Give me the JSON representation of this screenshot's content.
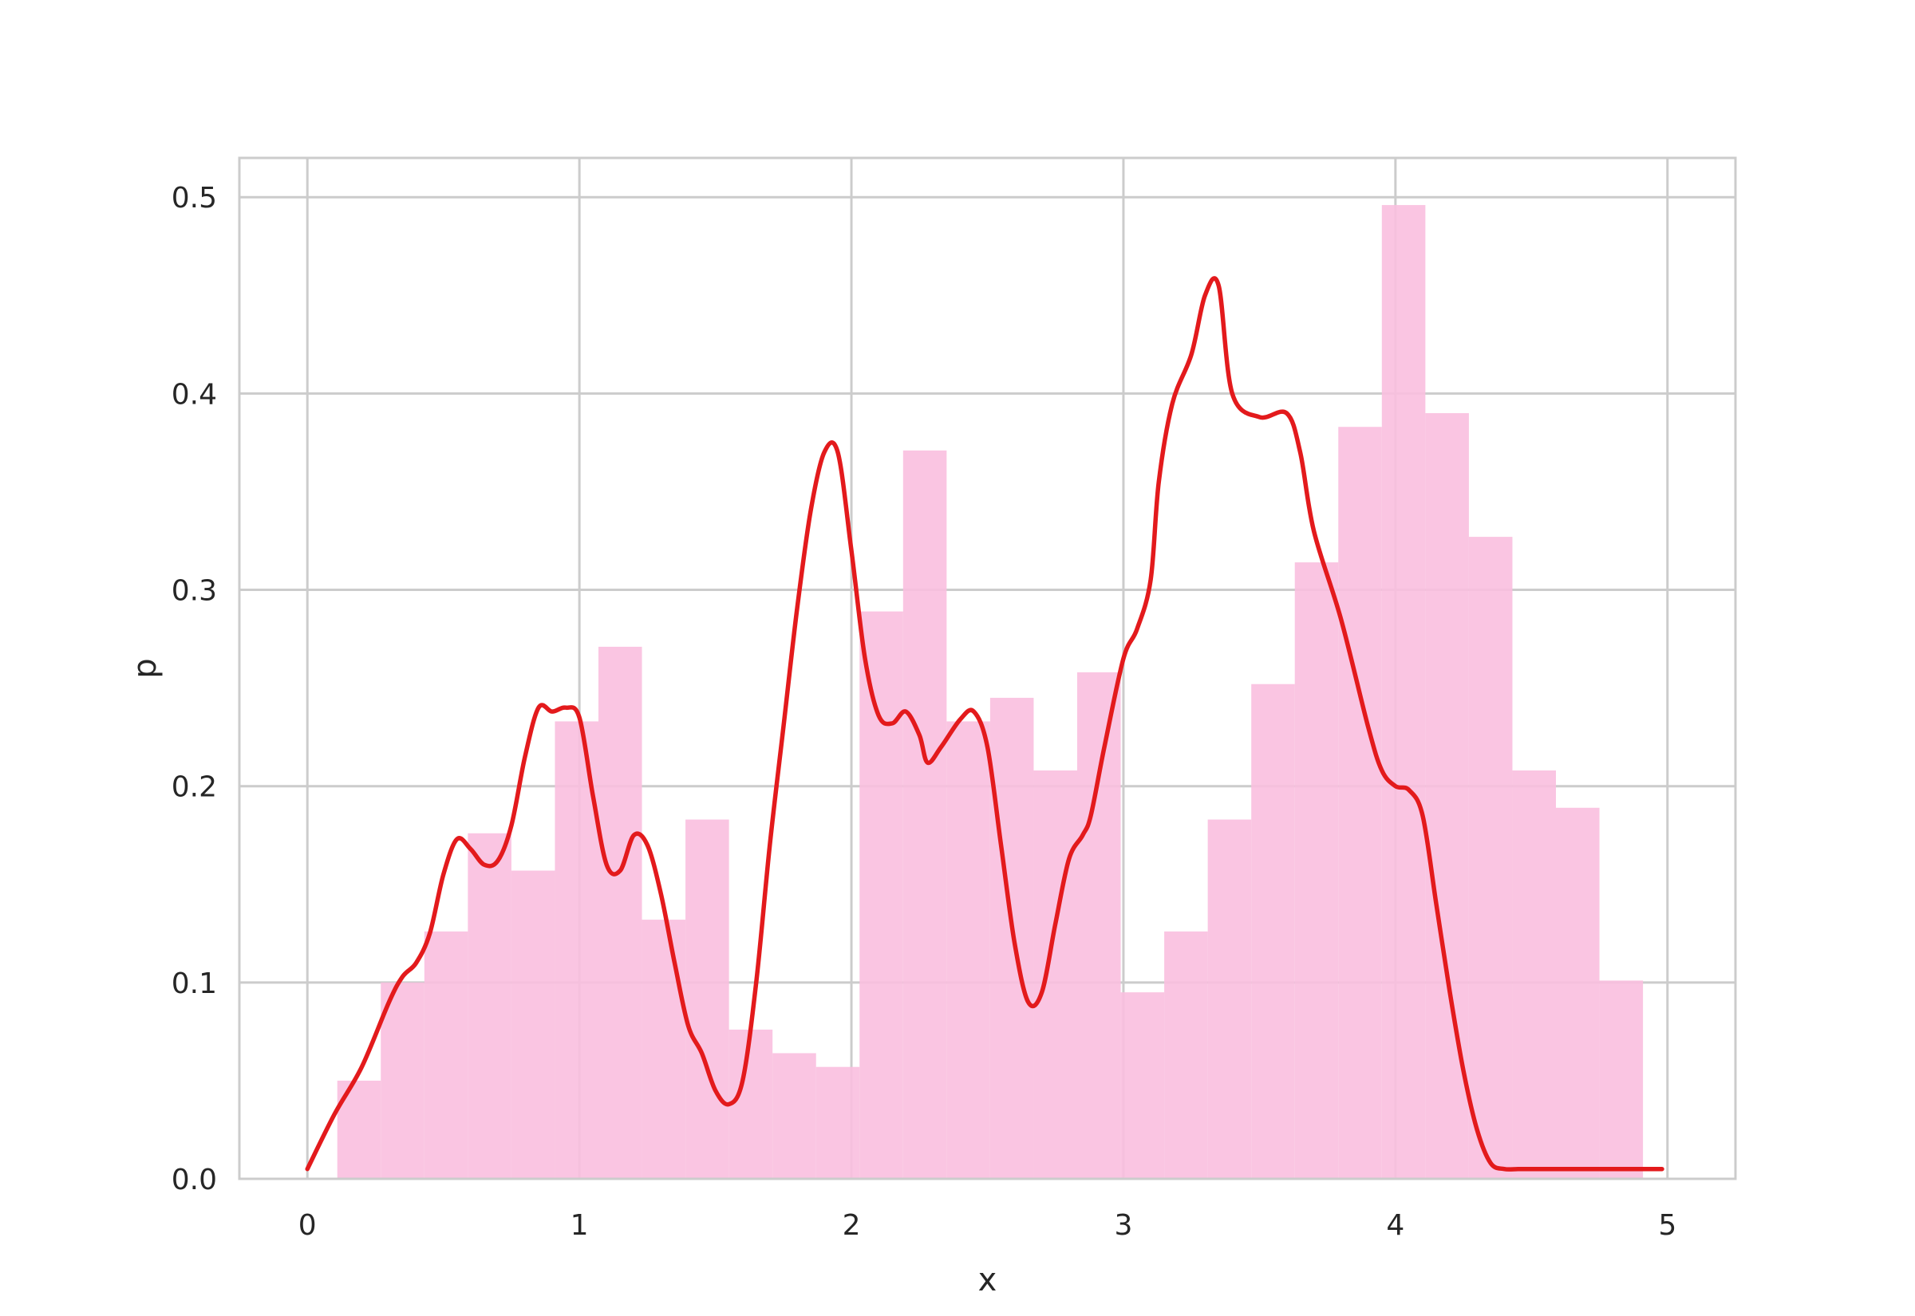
{
  "chart_data": {
    "type": "bar",
    "title": "",
    "xlabel": "x",
    "ylabel": "p",
    "xlim": [
      -0.25,
      5.25
    ],
    "ylim": [
      0.0,
      0.52
    ],
    "grid": true,
    "xticks": [
      0,
      1,
      2,
      3,
      4,
      5
    ],
    "xtick_labels": [
      "0",
      "1",
      "2",
      "3",
      "4",
      "5"
    ],
    "yticks": [
      0.0,
      0.1,
      0.2,
      0.3,
      0.4,
      0.5
    ],
    "ytick_labels": [
      "0.0",
      "0.1",
      "0.2",
      "0.3",
      "0.4",
      "0.5"
    ],
    "histogram": {
      "bin_width": 0.16,
      "bin_starts": [
        0.11,
        0.27,
        0.43,
        0.59,
        0.75,
        0.91,
        1.07,
        1.23,
        1.39,
        1.55,
        1.71,
        1.87,
        2.03,
        2.19,
        2.35,
        2.51,
        2.67,
        2.83,
        2.99,
        3.15,
        3.31,
        3.47,
        3.63,
        3.79,
        3.95,
        4.11,
        4.27,
        4.43,
        4.59,
        4.75
      ],
      "values": [
        0.05,
        0.1,
        0.126,
        0.176,
        0.157,
        0.233,
        0.271,
        0.132,
        0.183,
        0.076,
        0.064,
        0.057,
        0.289,
        0.371,
        0.233,
        0.245,
        0.208,
        0.258,
        0.095,
        0.126,
        0.183,
        0.252,
        0.314,
        0.383,
        0.496,
        0.39,
        0.327,
        0.208,
        0.189,
        0.101
      ],
      "color": "#f9bfdf"
    },
    "series": [
      {
        "type": "line",
        "color": "#e31a1c",
        "x": [
          0.0,
          0.1,
          0.2,
          0.3,
          0.35,
          0.4,
          0.45,
          0.5,
          0.55,
          0.6,
          0.65,
          0.7,
          0.75,
          0.8,
          0.85,
          0.9,
          0.95,
          1.0,
          1.05,
          1.1,
          1.15,
          1.2,
          1.25,
          1.3,
          1.35,
          1.4,
          1.45,
          1.5,
          1.55,
          1.6,
          1.65,
          1.7,
          1.75,
          1.8,
          1.85,
          1.9,
          1.95,
          2.0,
          2.05,
          2.1,
          2.15,
          2.2,
          2.25,
          2.28,
          2.33,
          2.4,
          2.45,
          2.5,
          2.55,
          2.6,
          2.65,
          2.7,
          2.75,
          2.8,
          2.85,
          2.88,
          2.93,
          3.0,
          3.05,
          3.1,
          3.13,
          3.18,
          3.25,
          3.3,
          3.35,
          3.4,
          3.5,
          3.6,
          3.65,
          3.7,
          3.8,
          3.9,
          3.95,
          4.0,
          4.05,
          4.1,
          4.15,
          4.2,
          4.25,
          4.3,
          4.35,
          4.4,
          4.45,
          4.5,
          4.55,
          4.6,
          4.65,
          4.7,
          4.75,
          4.8,
          4.9,
          4.98
        ],
        "y": [
          0.005,
          0.033,
          0.057,
          0.09,
          0.103,
          0.11,
          0.125,
          0.155,
          0.173,
          0.168,
          0.16,
          0.162,
          0.18,
          0.215,
          0.24,
          0.238,
          0.24,
          0.235,
          0.195,
          0.16,
          0.157,
          0.175,
          0.17,
          0.145,
          0.11,
          0.078,
          0.064,
          0.045,
          0.038,
          0.05,
          0.1,
          0.17,
          0.23,
          0.29,
          0.34,
          0.37,
          0.37,
          0.32,
          0.265,
          0.236,
          0.232,
          0.238,
          0.226,
          0.212,
          0.22,
          0.234,
          0.238,
          0.22,
          0.17,
          0.12,
          0.09,
          0.095,
          0.13,
          0.163,
          0.175,
          0.185,
          0.22,
          0.265,
          0.28,
          0.305,
          0.355,
          0.395,
          0.42,
          0.45,
          0.455,
          0.4,
          0.388,
          0.39,
          0.37,
          0.33,
          0.285,
          0.23,
          0.208,
          0.2,
          0.198,
          0.185,
          0.14,
          0.095,
          0.055,
          0.025,
          0.008,
          0.005,
          0.005,
          0.005,
          0.005,
          0.005,
          0.005,
          0.005,
          0.005,
          0.005,
          0.005,
          0.005
        ]
      }
    ]
  }
}
